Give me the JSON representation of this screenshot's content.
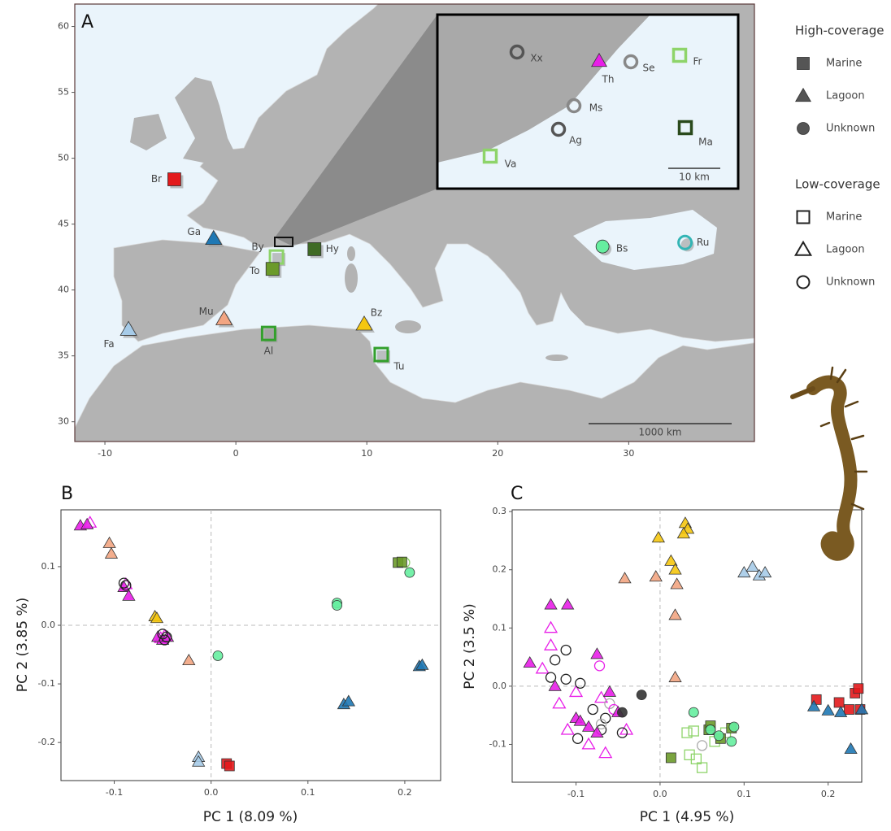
{
  "chart_data": [
    {
      "type": "map",
      "panel": "A",
      "xlim": [
        -12.3,
        39.6
      ],
      "ylim": [
        28.5,
        61.7
      ],
      "xticks": [
        -10,
        0,
        10,
        20,
        30
      ],
      "yticks": [
        30,
        35,
        40,
        45,
        50,
        55,
        60
      ],
      "scale_label": "1000 km",
      "inset_scale_label": "10 km",
      "sites": [
        {
          "label": "Br",
          "lon": -4.7,
          "lat": 48.4,
          "shape": "square",
          "color": "#e31a1c",
          "filled": true
        },
        {
          "label": "Ga",
          "lon": -1.7,
          "lat": 43.9,
          "shape": "triangle",
          "color": "#1f78b4",
          "filled": true
        },
        {
          "label": "By",
          "lon": 3.1,
          "lat": 42.5,
          "shape": "square",
          "color": "#8ed46a",
          "filled": false
        },
        {
          "label": "To",
          "lon": 2.8,
          "lat": 41.6,
          "shape": "square",
          "color": "#6b9a2a",
          "filled": true
        },
        {
          "label": "Hy",
          "lon": 6.0,
          "lat": 43.1,
          "shape": "square",
          "color": "#3f6b25",
          "filled": true
        },
        {
          "label": "Mu",
          "lon": -0.9,
          "lat": 37.8,
          "shape": "triangle",
          "color": "#f2a582",
          "filled": true
        },
        {
          "label": "Fa",
          "lon": -8.2,
          "lat": 37.0,
          "shape": "triangle",
          "color": "#a6cbe8",
          "filled": true
        },
        {
          "label": "Al",
          "lon": 2.5,
          "lat": 36.7,
          "shape": "square",
          "color": "#33a02c",
          "filled": false
        },
        {
          "label": "Bz",
          "lon": 9.8,
          "lat": 37.4,
          "shape": "triangle",
          "color": "#f5c710",
          "filled": true
        },
        {
          "label": "Tu",
          "lon": 11.1,
          "lat": 35.1,
          "shape": "square",
          "color": "#33a02c",
          "filled": false
        },
        {
          "label": "Bs",
          "lon": 28.0,
          "lat": 43.3,
          "shape": "circle",
          "color": "#66eea0",
          "filled": true
        },
        {
          "label": "Ru",
          "lon": 34.3,
          "lat": 43.6,
          "shape": "circle",
          "color": "#33b5b5",
          "filled": false
        }
      ],
      "inset_sites": [
        {
          "label": "Xx",
          "shape": "circle",
          "color": "#555555",
          "filled": false
        },
        {
          "label": "Th",
          "shape": "triangle",
          "color": "#e81ee8",
          "filled": true
        },
        {
          "label": "Se",
          "shape": "circle",
          "color": "#888888",
          "filled": false
        },
        {
          "label": "Fr",
          "shape": "square",
          "color": "#8ed46a",
          "filled": false
        },
        {
          "label": "Ms",
          "shape": "circle",
          "color": "#888888",
          "filled": false
        },
        {
          "label": "Ag",
          "shape": "circle",
          "color": "#555555",
          "filled": false
        },
        {
          "label": "Ma",
          "shape": "square",
          "color": "#2a4a1c",
          "filled": false
        },
        {
          "label": "Va",
          "shape": "square",
          "color": "#8ed46a",
          "filled": false
        }
      ],
      "legend": [
        {
          "title": "High-coverage",
          "filled": true,
          "items": [
            {
              "label": "Marine",
              "shape": "square"
            },
            {
              "label": "Lagoon",
              "shape": "triangle"
            },
            {
              "label": "Unknown",
              "shape": "circle"
            }
          ]
        },
        {
          "title": "Low-coverage",
          "filled": false,
          "items": [
            {
              "label": "Marine",
              "shape": "square"
            },
            {
              "label": "Lagoon",
              "shape": "triangle"
            },
            {
              "label": "Unknown",
              "shape": "circle"
            }
          ]
        }
      ]
    },
    {
      "type": "scatter",
      "panel": "B",
      "xlabel": "PC 1 (8.09 %)",
      "ylabel": "PC 2 (3.85 %)",
      "xlim": [
        -0.155,
        0.237
      ],
      "ylim": [
        -0.265,
        0.197
      ],
      "xticks": [
        -0.1,
        {
          "value": 0,
          "label": "0.0"
        },
        0.1,
        0.2
      ],
      "yticks": [
        -0.2,
        -0.1,
        {
          "value": 0,
          "label": "0.0"
        },
        0.1
      ],
      "zero_lines": true,
      "series": [
        {
          "shape": "triangle",
          "color": "#e81ee8",
          "filled": false,
          "x": [
            -0.125,
            -0.088,
            -0.048,
            -0.052
          ],
          "y": [
            0.175,
            0.07,
            -0.018,
            -0.022
          ]
        },
        {
          "shape": "triangle",
          "color": "#e81ee8",
          "filled": true,
          "x": [
            -0.135,
            -0.128,
            -0.09,
            -0.085,
            -0.055,
            -0.05,
            -0.045
          ],
          "y": [
            0.17,
            0.172,
            0.065,
            0.05,
            -0.02,
            -0.025,
            -0.02
          ]
        },
        {
          "shape": "circle",
          "color": "#222222",
          "filled": false,
          "x": [
            -0.09,
            -0.088,
            -0.05,
            -0.046,
            -0.048
          ],
          "y": [
            0.072,
            0.068,
            -0.015,
            -0.02,
            -0.025
          ]
        },
        {
          "shape": "triangle",
          "color": "#f2a582",
          "filled": true,
          "x": [
            -0.105,
            -0.103,
            -0.023
          ],
          "y": [
            0.14,
            0.122,
            -0.06
          ]
        },
        {
          "shape": "triangle",
          "color": "#f5c710",
          "filled": true,
          "x": [
            -0.058,
            -0.056
          ],
          "y": [
            0.015,
            0.012
          ]
        },
        {
          "shape": "circle",
          "color": "#66eea0",
          "filled": true,
          "x": [
            0.007,
            0.13,
            0.13,
            0.205
          ],
          "y": [
            -0.052,
            0.038,
            0.034,
            0.09
          ]
        },
        {
          "shape": "circle",
          "color": "#8ed46a",
          "filled": false,
          "x": [
            0.2
          ],
          "y": [
            0.107
          ]
        },
        {
          "shape": "square",
          "color": "#6b9a2a",
          "filled": true,
          "x": [
            0.193,
            0.197
          ],
          "y": [
            0.107,
            0.108
          ]
        },
        {
          "shape": "triangle",
          "color": "#1f78b4",
          "filled": true,
          "x": [
            0.137,
            0.142,
            0.215,
            0.218
          ],
          "y": [
            -0.135,
            -0.13,
            -0.07,
            -0.068
          ]
        },
        {
          "shape": "triangle",
          "color": "#a6cbe8",
          "filled": true,
          "x": [
            -0.013,
            -0.013
          ],
          "y": [
            -0.225,
            -0.233
          ]
        },
        {
          "shape": "square",
          "color": "#e31a1c",
          "filled": true,
          "x": [
            0.016,
            0.019
          ],
          "y": [
            -0.236,
            -0.24
          ]
        }
      ]
    },
    {
      "type": "scatter",
      "panel": "C",
      "xlabel": "PC 1 (4.95 %)",
      "ylabel": "PC 2 (3.5 %)",
      "xlim": [
        -0.176,
        0.24
      ],
      "ylim": [
        -0.165,
        0.303
      ],
      "xticks": [
        -0.1,
        {
          "value": 0,
          "label": "0.0"
        },
        0.1,
        0.2
      ],
      "yticks": [
        -0.1,
        {
          "value": 0,
          "label": "0.0"
        },
        0.1,
        0.2,
        0.3
      ],
      "zero_lines": true,
      "series": [
        {
          "shape": "triangle",
          "color": "#f5c710",
          "filled": true,
          "x": [
            0.03,
            0.033,
            0.028,
            -0.002,
            0.013,
            0.018
          ],
          "y": [
            0.28,
            0.27,
            0.262,
            0.255,
            0.215,
            0.2
          ]
        },
        {
          "shape": "triangle",
          "color": "#f2a582",
          "filled": true,
          "x": [
            -0.042,
            -0.005,
            0.02,
            0.018,
            0.018
          ],
          "y": [
            0.185,
            0.188,
            0.175,
            0.122,
            0.015
          ]
        },
        {
          "shape": "triangle",
          "color": "#a6cbe8",
          "filled": true,
          "x": [
            0.1,
            0.11,
            0.118,
            0.125
          ],
          "y": [
            0.195,
            0.205,
            0.19,
            0.195
          ]
        },
        {
          "shape": "triangle",
          "color": "#e81ee8",
          "filled": false,
          "x": [
            -0.13,
            -0.14,
            -0.12,
            -0.1,
            -0.085,
            -0.065,
            -0.04,
            -0.11,
            -0.07,
            -0.13
          ],
          "y": [
            0.1,
            0.03,
            -0.03,
            -0.01,
            -0.1,
            -0.115,
            -0.075,
            -0.075,
            -0.02,
            0.07
          ]
        },
        {
          "shape": "circle",
          "color": "#222222",
          "filled": false,
          "x": [
            -0.125,
            -0.112,
            -0.13,
            -0.112,
            -0.095,
            -0.08,
            -0.098,
            -0.07,
            -0.045,
            -0.065
          ],
          "y": [
            0.045,
            0.062,
            0.015,
            0.012,
            0.005,
            -0.04,
            -0.09,
            -0.075,
            -0.08,
            -0.055
          ]
        },
        {
          "shape": "circle",
          "color": "#aaaaaa",
          "filled": false,
          "x": [
            -0.06,
            -0.07,
            0.05
          ],
          "y": [
            -0.03,
            -0.065,
            -0.102
          ]
        },
        {
          "shape": "circle",
          "color": "#e81ee8",
          "filled": false,
          "x": [
            -0.072,
            -0.055
          ],
          "y": [
            0.035,
            -0.04
          ]
        },
        {
          "shape": "triangle",
          "color": "#e81ee8",
          "filled": true,
          "x": [
            -0.13,
            -0.11,
            -0.155,
            -0.075,
            -0.125,
            -0.1,
            -0.085,
            -0.06,
            -0.075,
            -0.05,
            -0.095
          ],
          "y": [
            0.14,
            0.14,
            0.04,
            0.055,
            0.0,
            -0.055,
            -0.07,
            -0.01,
            -0.08,
            -0.045,
            -0.06
          ]
        },
        {
          "shape": "circle",
          "color": "#333333",
          "filled": true,
          "x": [
            -0.022,
            -0.045
          ],
          "y": [
            -0.015,
            -0.045
          ]
        },
        {
          "shape": "square",
          "color": "#8ed46a",
          "filled": false,
          "x": [
            0.032,
            0.04,
            0.035,
            0.043,
            0.05,
            0.065,
            0.078
          ],
          "y": [
            -0.08,
            -0.077,
            -0.118,
            -0.125,
            -0.14,
            -0.095,
            -0.08
          ]
        },
        {
          "shape": "square",
          "color": "#6b9a2a",
          "filled": true,
          "x": [
            0.013,
            0.058,
            0.06,
            0.085,
            0.072
          ],
          "y": [
            -0.123,
            -0.075,
            -0.068,
            -0.072,
            -0.09
          ]
        },
        {
          "shape": "circle",
          "color": "#66eea0",
          "filled": true,
          "x": [
            0.04,
            0.088,
            0.085,
            0.06,
            0.07
          ],
          "y": [
            -0.045,
            -0.07,
            -0.095,
            -0.075,
            -0.085
          ]
        },
        {
          "shape": "square",
          "color": "#e31a1c",
          "filled": true,
          "x": [
            0.186,
            0.213,
            0.232,
            0.236,
            0.225,
            0.238
          ],
          "y": [
            -0.023,
            -0.028,
            -0.012,
            -0.004,
            -0.04,
            -0.04
          ]
        },
        {
          "shape": "triangle",
          "color": "#1f78b4",
          "filled": true,
          "x": [
            0.183,
            0.2,
            0.215,
            0.227,
            0.24
          ],
          "y": [
            -0.035,
            -0.042,
            -0.045,
            -0.108,
            -0.04
          ]
        }
      ]
    }
  ]
}
